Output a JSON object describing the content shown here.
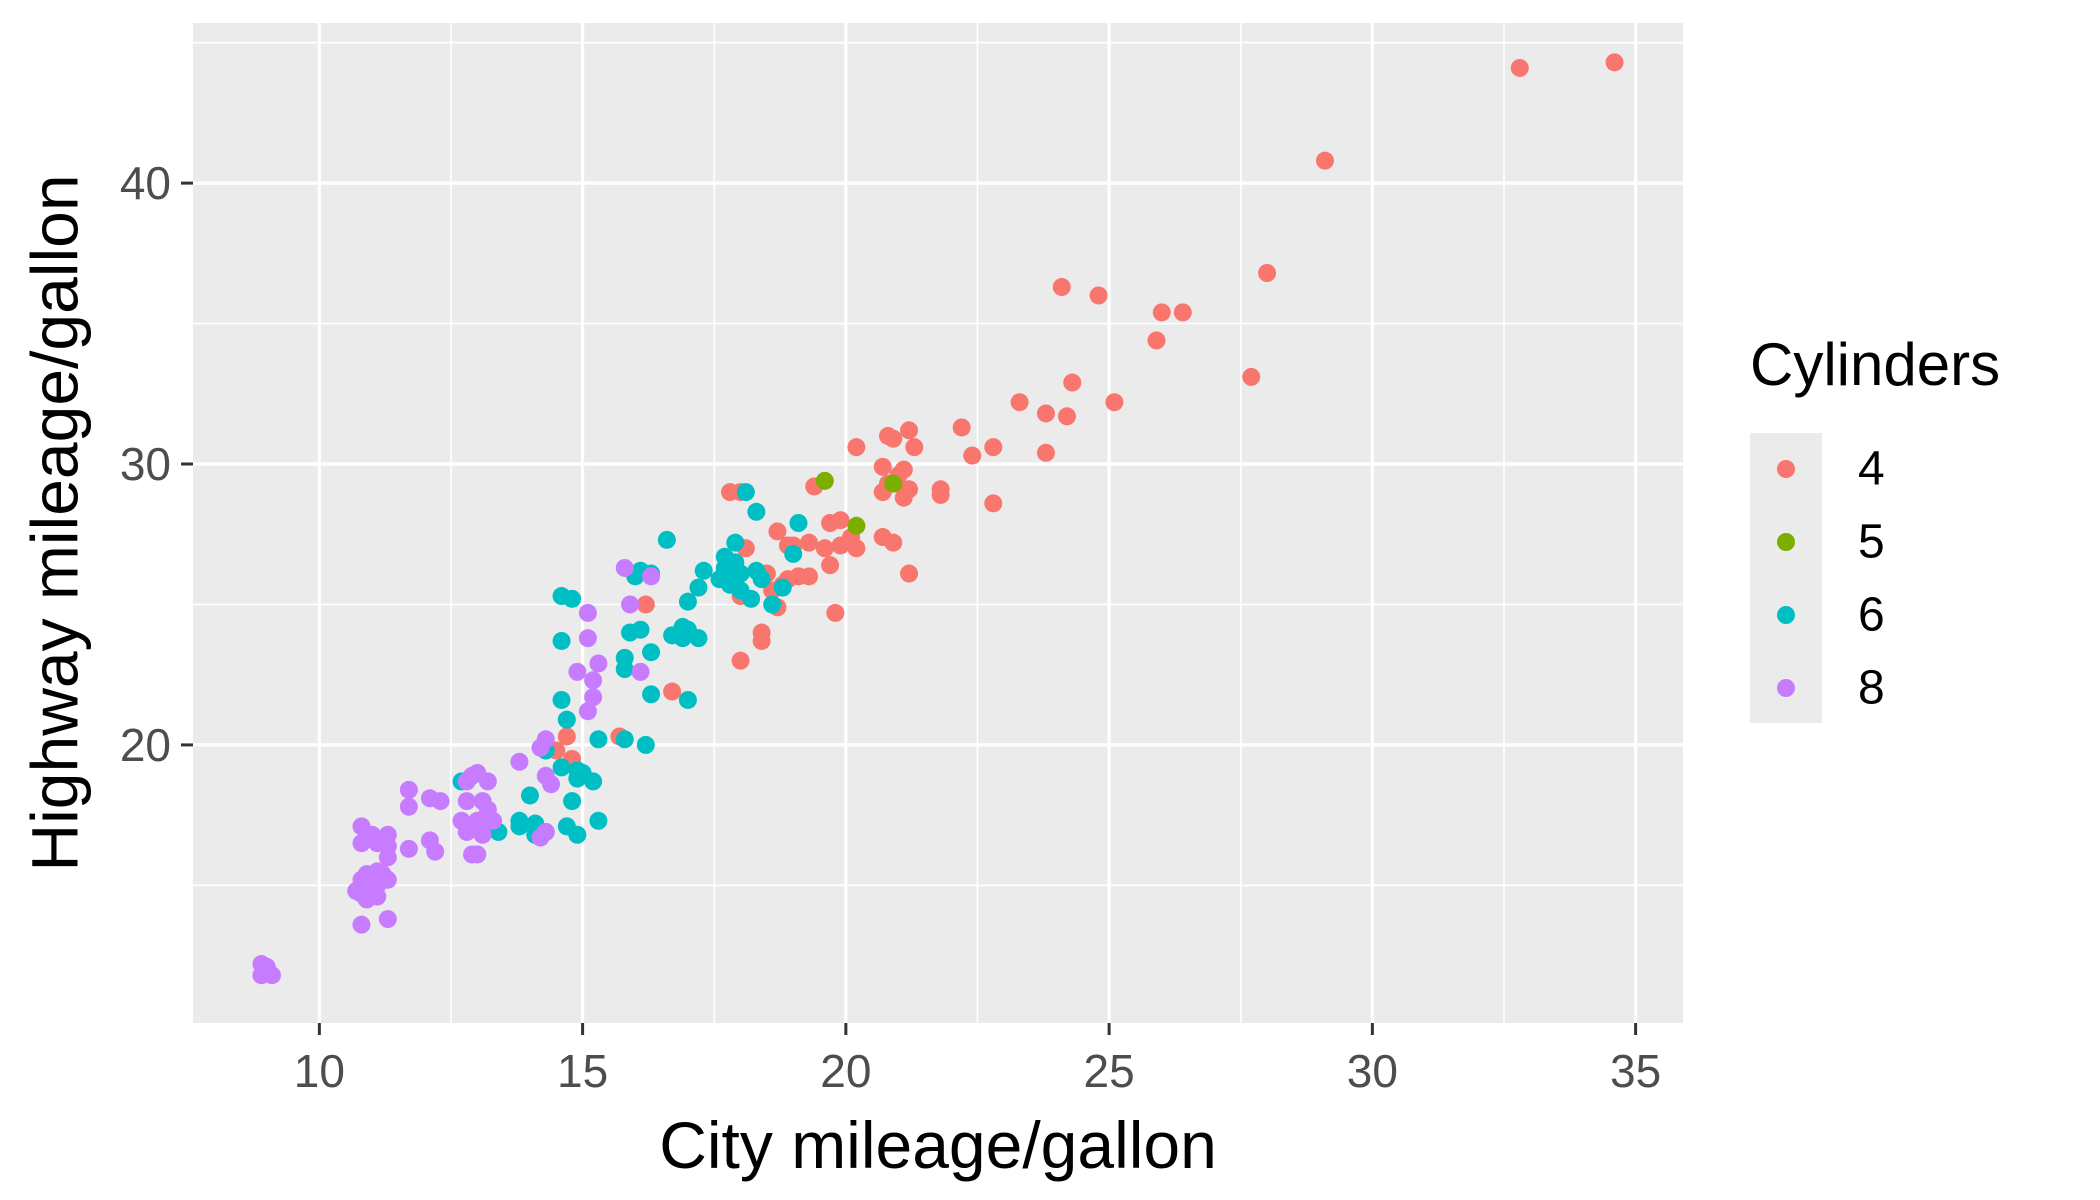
{
  "chart_data": {
    "type": "scatter",
    "xlabel": "City mileage/gallon",
    "ylabel": "Highway mileage/gallon",
    "xlim": [
      7.6,
      35.9
    ],
    "ylim": [
      10.1,
      45.7
    ],
    "x_ticks": [
      10,
      15,
      20,
      25,
      30,
      35
    ],
    "y_ticks": [
      20,
      30,
      40
    ],
    "grid": true,
    "legend_title": "Cylinders",
    "legend_position": "right",
    "series": [
      {
        "name": "4",
        "color": "#F8766D",
        "points": [
          [
            34.6,
            44.3
          ],
          [
            32.8,
            44.1
          ],
          [
            29.1,
            40.8
          ],
          [
            28.0,
            36.8
          ],
          [
            27.7,
            33.1
          ],
          [
            26.4,
            35.4
          ],
          [
            26.0,
            35.4
          ],
          [
            25.9,
            34.4
          ],
          [
            25.1,
            32.2
          ],
          [
            24.8,
            36.0
          ],
          [
            24.3,
            32.9
          ],
          [
            24.2,
            31.7
          ],
          [
            24.1,
            36.3
          ],
          [
            23.8,
            31.8
          ],
          [
            23.8,
            30.4
          ],
          [
            23.3,
            32.2
          ],
          [
            22.8,
            30.6
          ],
          [
            22.8,
            28.6
          ],
          [
            22.4,
            30.3
          ],
          [
            22.2,
            31.3
          ],
          [
            21.8,
            29.1
          ],
          [
            21.8,
            28.9
          ],
          [
            21.3,
            30.6
          ],
          [
            21.2,
            31.2
          ],
          [
            21.2,
            29.1
          ],
          [
            21.1,
            29.8
          ],
          [
            21.1,
            28.8
          ],
          [
            21.0,
            29.6
          ],
          [
            20.9,
            30.9
          ],
          [
            20.8,
            31.0
          ],
          [
            20.8,
            29.3
          ],
          [
            20.7,
            29.9
          ],
          [
            20.7,
            29.0
          ],
          [
            20.9,
            27.2
          ],
          [
            20.7,
            27.4
          ],
          [
            21.2,
            26.1
          ],
          [
            20.2,
            30.6
          ],
          [
            20.2,
            27.0
          ],
          [
            20.1,
            27.4
          ],
          [
            19.9,
            28.0
          ],
          [
            19.9,
            27.1
          ],
          [
            19.7,
            27.9
          ],
          [
            19.6,
            27.0
          ],
          [
            19.7,
            26.4
          ],
          [
            19.8,
            24.7
          ],
          [
            19.4,
            29.2
          ],
          [
            19.3,
            27.2
          ],
          [
            19.3,
            26.0
          ],
          [
            19.1,
            26.0
          ],
          [
            19.0,
            27.1
          ],
          [
            18.9,
            27.1
          ],
          [
            18.9,
            25.9
          ],
          [
            18.8,
            25.7
          ],
          [
            18.7,
            27.6
          ],
          [
            18.6,
            25.5
          ],
          [
            18.7,
            24.9
          ],
          [
            18.5,
            26.1
          ],
          [
            18.4,
            24.0
          ],
          [
            18.4,
            23.7
          ],
          [
            18.0,
            29.0
          ],
          [
            17.8,
            29.0
          ],
          [
            18.1,
            27.0
          ],
          [
            18.0,
            25.3
          ],
          [
            18.0,
            23.0
          ],
          [
            16.2,
            25.0
          ],
          [
            16.7,
            21.9
          ],
          [
            15.7,
            20.3
          ],
          [
            14.7,
            20.3
          ],
          [
            14.5,
            19.8
          ],
          [
            14.8,
            19.5
          ]
        ]
      },
      {
        "name": "5",
        "color": "#7CAE00",
        "points": [
          [
            19.6,
            29.4
          ],
          [
            20.9,
            29.3
          ],
          [
            20.2,
            27.8
          ]
        ]
      },
      {
        "name": "6",
        "color": "#00BFC4",
        "points": [
          [
            18.1,
            29.0
          ],
          [
            18.3,
            28.3
          ],
          [
            19.1,
            27.9
          ],
          [
            19.0,
            26.8
          ],
          [
            18.8,
            25.6
          ],
          [
            18.6,
            25.0
          ],
          [
            18.4,
            25.9
          ],
          [
            18.3,
            26.2
          ],
          [
            18.2,
            25.2
          ],
          [
            17.9,
            27.2
          ],
          [
            17.9,
            26.5
          ],
          [
            17.7,
            26.7
          ],
          [
            17.7,
            26.3
          ],
          [
            17.7,
            25.9
          ],
          [
            17.8,
            25.7
          ],
          [
            18.0,
            26.1
          ],
          [
            18.0,
            25.5
          ],
          [
            17.6,
            25.9
          ],
          [
            17.3,
            26.2
          ],
          [
            17.2,
            25.6
          ],
          [
            17.2,
            23.8
          ],
          [
            17.0,
            25.1
          ],
          [
            17.0,
            24.1
          ],
          [
            16.9,
            23.8
          ],
          [
            16.9,
            24.2
          ],
          [
            16.7,
            23.9
          ],
          [
            16.6,
            27.3
          ],
          [
            16.3,
            26.1
          ],
          [
            16.1,
            26.2
          ],
          [
            16.0,
            26.0
          ],
          [
            16.1,
            24.1
          ],
          [
            15.9,
            24.0
          ],
          [
            15.8,
            23.1
          ],
          [
            16.3,
            23.3
          ],
          [
            15.8,
            22.7
          ],
          [
            16.3,
            21.8
          ],
          [
            17.0,
            21.6
          ],
          [
            16.2,
            20.0
          ],
          [
            15.8,
            20.2
          ],
          [
            15.3,
            20.2
          ],
          [
            14.8,
            25.2
          ],
          [
            14.6,
            25.3
          ],
          [
            14.6,
            23.7
          ],
          [
            14.6,
            21.6
          ],
          [
            14.7,
            20.9
          ],
          [
            14.3,
            19.8
          ],
          [
            14.6,
            19.2
          ],
          [
            14.9,
            19.1
          ],
          [
            15.0,
            19.0
          ],
          [
            14.9,
            18.8
          ],
          [
            15.2,
            18.7
          ],
          [
            14.8,
            18.0
          ],
          [
            14.0,
            18.2
          ],
          [
            13.8,
            17.3
          ],
          [
            13.8,
            17.1
          ],
          [
            14.1,
            17.2
          ],
          [
            14.7,
            17.1
          ],
          [
            15.3,
            17.3
          ],
          [
            14.3,
            16.9
          ],
          [
            13.4,
            16.9
          ],
          [
            14.9,
            16.8
          ],
          [
            14.1,
            16.8
          ],
          [
            12.7,
            18.7
          ],
          [
            13.3,
            17.1
          ]
        ]
      },
      {
        "name": "8",
        "color": "#C77CFF",
        "points": [
          [
            15.8,
            26.3
          ],
          [
            16.3,
            26.0
          ],
          [
            15.9,
            25.0
          ],
          [
            15.1,
            24.7
          ],
          [
            15.1,
            23.8
          ],
          [
            15.3,
            22.9
          ],
          [
            16.1,
            22.6
          ],
          [
            14.9,
            22.6
          ],
          [
            15.2,
            22.3
          ],
          [
            15.2,
            21.7
          ],
          [
            15.1,
            21.2
          ],
          [
            14.3,
            20.2
          ],
          [
            14.2,
            19.9
          ],
          [
            13.8,
            19.4
          ],
          [
            13.0,
            19.0
          ],
          [
            12.9,
            18.9
          ],
          [
            12.8,
            18.7
          ],
          [
            13.2,
            18.7
          ],
          [
            14.3,
            18.9
          ],
          [
            14.4,
            18.6
          ],
          [
            11.7,
            18.4
          ],
          [
            12.1,
            18.1
          ],
          [
            12.3,
            18.0
          ],
          [
            12.8,
            18.0
          ],
          [
            13.1,
            18.0
          ],
          [
            11.7,
            17.8
          ],
          [
            13.2,
            17.7
          ],
          [
            12.7,
            17.3
          ],
          [
            13.0,
            17.3
          ],
          [
            13.3,
            17.3
          ],
          [
            11.3,
            16.8
          ],
          [
            13.0,
            17.0
          ],
          [
            12.8,
            16.9
          ],
          [
            13.1,
            16.8
          ],
          [
            10.8,
            17.1
          ],
          [
            11.0,
            16.8
          ],
          [
            10.8,
            16.5
          ],
          [
            11.1,
            16.5
          ],
          [
            11.3,
            16.4
          ],
          [
            12.1,
            16.6
          ],
          [
            11.3,
            16.0
          ],
          [
            11.7,
            16.3
          ],
          [
            12.2,
            16.2
          ],
          [
            12.9,
            16.1
          ],
          [
            13.0,
            16.1
          ],
          [
            14.3,
            16.9
          ],
          [
            14.2,
            16.7
          ],
          [
            11.1,
            15.5
          ],
          [
            10.9,
            15.4
          ],
          [
            11.2,
            15.4
          ],
          [
            11.3,
            15.2
          ],
          [
            10.8,
            15.2
          ],
          [
            11.1,
            15.0
          ],
          [
            11.0,
            14.8
          ],
          [
            10.8,
            14.7
          ],
          [
            10.7,
            14.8
          ],
          [
            11.1,
            14.6
          ],
          [
            10.9,
            14.5
          ],
          [
            10.8,
            13.6
          ],
          [
            11.3,
            13.8
          ],
          [
            8.9,
            12.2
          ],
          [
            9.0,
            12.1
          ],
          [
            9.1,
            11.8
          ],
          [
            8.9,
            11.8
          ]
        ]
      }
    ]
  }
}
